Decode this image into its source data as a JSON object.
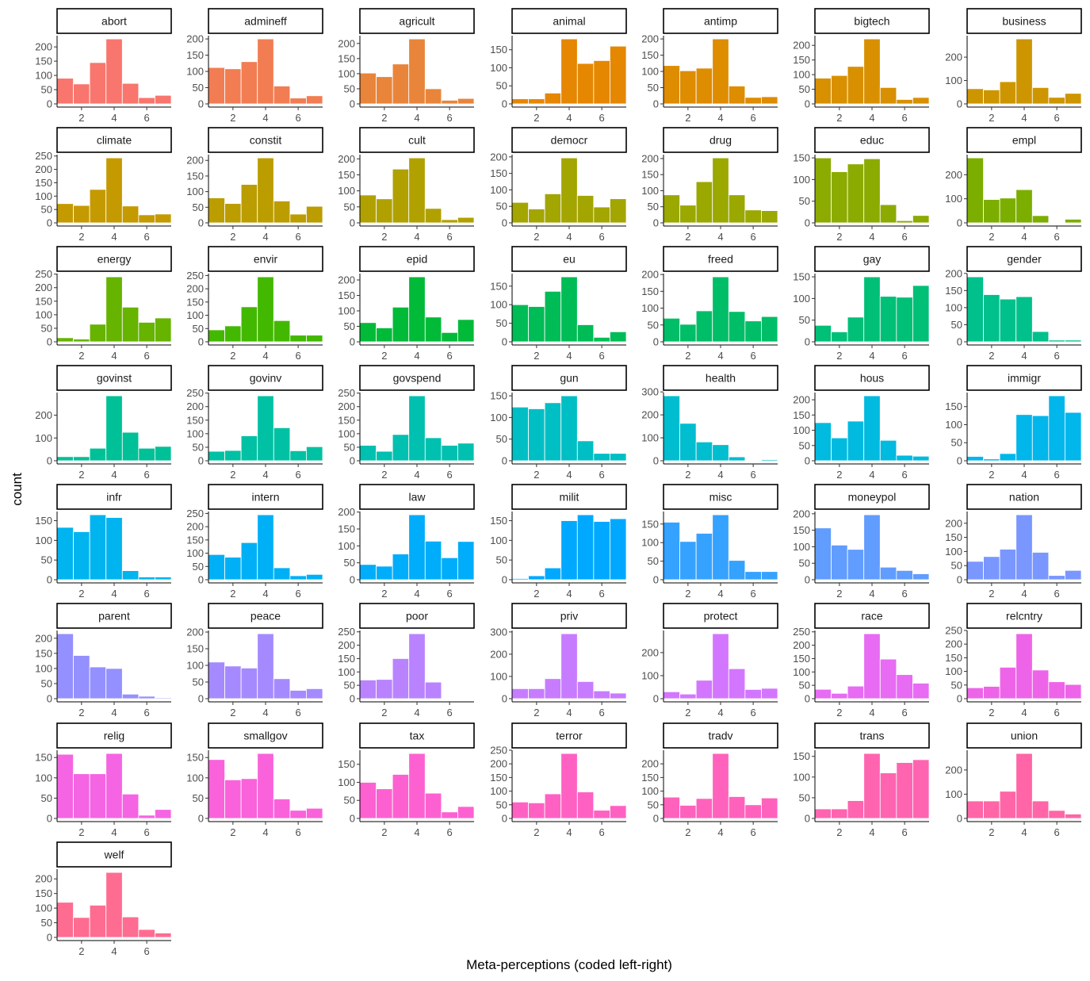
{
  "chart_data": {
    "type": "bar",
    "xlabel": "Meta-perceptions (coded left-right)",
    "ylabel": "count",
    "x_categories": [
      1,
      2,
      3,
      4,
      5,
      6,
      7
    ],
    "x_ticks": [
      2,
      4,
      6
    ],
    "legend": "none",
    "grid": false,
    "panels": [
      {
        "name": "abort",
        "color": "#F8766D",
        "yticks": [
          0,
          50,
          100,
          150,
          200
        ],
        "values": [
          90,
          70,
          145,
          228,
          72,
          22,
          30
        ]
      },
      {
        "name": "admineff",
        "color": "#F27D52",
        "yticks": [
          0,
          50,
          100,
          150,
          200
        ],
        "values": [
          112,
          108,
          130,
          200,
          55,
          18,
          25
        ]
      },
      {
        "name": "agricult",
        "color": "#E8853A",
        "yticks": [
          0,
          50,
          100,
          150,
          200
        ],
        "values": [
          102,
          90,
          132,
          215,
          50,
          12,
          18
        ]
      },
      {
        "name": "animal",
        "color": "#E58700",
        "yticks": [
          0,
          50,
          100,
          150
        ],
        "values": [
          14,
          14,
          30,
          180,
          112,
          120,
          160
        ]
      },
      {
        "name": "antimp",
        "color": "#DE8C00",
        "yticks": [
          0,
          50,
          100,
          150,
          200
        ],
        "values": [
          118,
          102,
          110,
          200,
          55,
          20,
          22
        ]
      },
      {
        "name": "bigtech",
        "color": "#D89000",
        "yticks": [
          0,
          50,
          100,
          150,
          200
        ],
        "values": [
          88,
          97,
          128,
          222,
          56,
          15,
          22
        ]
      },
      {
        "name": "business",
        "color": "#CD9600",
        "yticks": [
          0,
          100,
          200
        ],
        "values": [
          65,
          60,
          95,
          278,
          70,
          28,
          45
        ]
      },
      {
        "name": "climate",
        "color": "#C49A00",
        "yticks": [
          0,
          50,
          100,
          150,
          200,
          250
        ],
        "values": [
          72,
          65,
          125,
          243,
          63,
          30,
          33
        ]
      },
      {
        "name": "constit",
        "color": "#BB9D00",
        "yticks": [
          0,
          50,
          100,
          150,
          200
        ],
        "values": [
          80,
          62,
          123,
          208,
          70,
          28,
          53
        ]
      },
      {
        "name": "cult",
        "color": "#B0A100",
        "yticks": [
          0,
          50,
          100,
          150,
          200
        ],
        "values": [
          87,
          75,
          168,
          203,
          45,
          10,
          17
        ]
      },
      {
        "name": "democr",
        "color": "#A3A500",
        "yticks": [
          0,
          50,
          100,
          150,
          200
        ],
        "values": [
          62,
          42,
          88,
          197,
          83,
          48,
          73
        ]
      },
      {
        "name": "drug",
        "color": "#9AA800",
        "yticks": [
          0,
          50,
          100,
          150,
          200
        ],
        "values": [
          87,
          55,
          128,
          202,
          87,
          40,
          38
        ]
      },
      {
        "name": "educ",
        "color": "#8CAB00",
        "yticks": [
          0,
          50,
          100,
          150
        ],
        "values": [
          150,
          118,
          136,
          148,
          42,
          5,
          17
        ]
      },
      {
        "name": "empl",
        "color": "#7CAE00",
        "yticks": [
          0,
          100,
          200
        ],
        "values": [
          270,
          97,
          103,
          138,
          30,
          2,
          15
        ]
      },
      {
        "name": "energy",
        "color": "#66B300",
        "yticks": [
          0,
          50,
          100,
          150,
          200,
          250
        ],
        "values": [
          15,
          10,
          65,
          240,
          128,
          72,
          88
        ]
      },
      {
        "name": "envir",
        "color": "#43B800",
        "yticks": [
          0,
          50,
          100,
          150,
          200,
          250
        ],
        "values": [
          45,
          60,
          132,
          245,
          80,
          25,
          25
        ]
      },
      {
        "name": "epid",
        "color": "#00BA38",
        "yticks": [
          0,
          50,
          100,
          150,
          200
        ],
        "values": [
          62,
          45,
          112,
          210,
          80,
          30,
          72
        ]
      },
      {
        "name": "eu",
        "color": "#00BC56",
        "yticks": [
          0,
          50,
          100,
          150
        ],
        "values": [
          100,
          95,
          136,
          175,
          46,
          12,
          27
        ]
      },
      {
        "name": "freed",
        "color": "#00BE67",
        "yticks": [
          0,
          50,
          100,
          150,
          200
        ],
        "values": [
          70,
          52,
          92,
          193,
          90,
          62,
          75
        ]
      },
      {
        "name": "gay",
        "color": "#00BF77",
        "yticks": [
          0,
          50,
          100,
          150
        ],
        "values": [
          38,
          23,
          57,
          150,
          105,
          103,
          130
        ]
      },
      {
        "name": "gender",
        "color": "#00C08B",
        "yticks": [
          0,
          50,
          100,
          150,
          200
        ],
        "values": [
          190,
          138,
          125,
          132,
          30,
          5,
          5
        ]
      },
      {
        "name": "govinst",
        "color": "#00C097",
        "yticks": [
          0,
          100,
          200
        ],
        "values": [
          18,
          18,
          55,
          285,
          125,
          55,
          63
        ]
      },
      {
        "name": "govinv",
        "color": "#00C1A3",
        "yticks": [
          0,
          50,
          100,
          150,
          200,
          250
        ],
        "values": [
          35,
          38,
          92,
          240,
          122,
          37,
          52
        ]
      },
      {
        "name": "govspend",
        "color": "#00C0AF",
        "yticks": [
          0,
          50,
          100,
          150,
          200,
          250
        ],
        "values": [
          57,
          35,
          97,
          240,
          85,
          57,
          65
        ]
      },
      {
        "name": "gun",
        "color": "#00BFC4",
        "yticks": [
          0,
          50,
          100,
          150
        ],
        "values": [
          124,
          120,
          134,
          150,
          46,
          17,
          17
        ]
      },
      {
        "name": "health",
        "color": "#00BDD0",
        "yticks": [
          0,
          100,
          200,
          300
        ],
        "values": [
          283,
          163,
          82,
          70,
          17,
          0,
          5
        ]
      },
      {
        "name": "hous",
        "color": "#00BAE0",
        "yticks": [
          0,
          50,
          100,
          150,
          200
        ],
        "values": [
          125,
          75,
          130,
          213,
          67,
          18,
          15
        ]
      },
      {
        "name": "immigr",
        "color": "#00B6EB",
        "yticks": [
          0,
          50,
          100,
          150
        ],
        "values": [
          12,
          5,
          20,
          128,
          125,
          180,
          134
        ]
      },
      {
        "name": "infr",
        "color": "#00B4EF",
        "yticks": [
          0,
          50,
          100,
          150
        ],
        "values": [
          133,
          122,
          165,
          158,
          23,
          7,
          7
        ]
      },
      {
        "name": "intern",
        "color": "#00B0F6",
        "yticks": [
          0,
          50,
          100,
          150,
          200,
          250
        ],
        "values": [
          95,
          85,
          140,
          245,
          45,
          15,
          20
        ]
      },
      {
        "name": "law",
        "color": "#00ADFA",
        "yticks": [
          0,
          50,
          100,
          150,
          200
        ],
        "values": [
          45,
          40,
          76,
          192,
          114,
          65,
          113
        ]
      },
      {
        "name": "milit",
        "color": "#00A9FF",
        "yticks": [
          0,
          50,
          100,
          150
        ],
        "values": [
          3,
          10,
          30,
          150,
          165,
          148,
          155
        ]
      },
      {
        "name": "misc",
        "color": "#35A2FF",
        "yticks": [
          0,
          50,
          100,
          150
        ],
        "values": [
          155,
          103,
          125,
          175,
          52,
          22,
          22
        ]
      },
      {
        "name": "moneypol",
        "color": "#619CFF",
        "yticks": [
          0,
          50,
          100,
          150,
          200
        ],
        "values": [
          157,
          105,
          92,
          197,
          38,
          28,
          18
        ]
      },
      {
        "name": "nation",
        "color": "#7997FF",
        "yticks": [
          0,
          50,
          100,
          150,
          200
        ],
        "values": [
          65,
          82,
          108,
          230,
          97,
          15,
          33
        ]
      },
      {
        "name": "parent",
        "color": "#9590FF",
        "yticks": [
          0,
          50,
          100,
          150,
          200
        ],
        "values": [
          215,
          143,
          105,
          100,
          15,
          8,
          3
        ]
      },
      {
        "name": "peace",
        "color": "#A58AFF",
        "yticks": [
          0,
          50,
          100,
          150,
          200
        ],
        "values": [
          110,
          98,
          92,
          195,
          60,
          25,
          30
        ]
      },
      {
        "name": "poor",
        "color": "#B983FF",
        "yticks": [
          0,
          50,
          100,
          150,
          200,
          250
        ],
        "values": [
          70,
          72,
          150,
          243,
          62,
          2,
          2
        ]
      },
      {
        "name": "priv",
        "color": "#C77CFF",
        "yticks": [
          0,
          100,
          200,
          300
        ],
        "values": [
          45,
          45,
          90,
          292,
          77,
          35,
          25
        ]
      },
      {
        "name": "protect",
        "color": "#D376FF",
        "yticks": [
          0,
          100,
          200
        ],
        "values": [
          30,
          20,
          80,
          282,
          130,
          40,
          45
        ]
      },
      {
        "name": "race",
        "color": "#E76BF3",
        "yticks": [
          0,
          50,
          100,
          150,
          200,
          250
        ],
        "values": [
          35,
          20,
          47,
          243,
          148,
          90,
          58
        ]
      },
      {
        "name": "relcntry",
        "color": "#EE64E8",
        "yticks": [
          0,
          50,
          100,
          150,
          200,
          250
        ],
        "values": [
          40,
          45,
          115,
          238,
          105,
          62,
          52
        ]
      },
      {
        "name": "relig",
        "color": "#F564E3",
        "yticks": [
          0,
          50,
          100,
          150
        ],
        "values": [
          158,
          110,
          110,
          160,
          60,
          8,
          22
        ]
      },
      {
        "name": "smallgov",
        "color": "#FA62DB",
        "yticks": [
          0,
          50,
          100,
          150
        ],
        "values": [
          145,
          95,
          98,
          160,
          48,
          20,
          25
        ]
      },
      {
        "name": "tax",
        "color": "#FD61D1",
        "yticks": [
          0,
          50,
          100,
          150
        ],
        "values": [
          100,
          82,
          122,
          180,
          70,
          18,
          33
        ]
      },
      {
        "name": "terror",
        "color": "#FF61C3",
        "yticks": [
          0,
          50,
          100,
          150,
          200,
          250
        ],
        "values": [
          60,
          57,
          90,
          238,
          97,
          30,
          47
        ]
      },
      {
        "name": "tradv",
        "color": "#FF62BC",
        "yticks": [
          0,
          50,
          100,
          150,
          200
        ],
        "values": [
          78,
          48,
          73,
          238,
          80,
          50,
          75
        ]
      },
      {
        "name": "trans",
        "color": "#FF64B0",
        "yticks": [
          0,
          50,
          100,
          150
        ],
        "values": [
          23,
          23,
          43,
          157,
          110,
          135,
          142
        ]
      },
      {
        "name": "union",
        "color": "#FF65A7",
        "yticks": [
          0,
          100,
          200
        ],
        "values": [
          72,
          72,
          112,
          268,
          72,
          33,
          18
        ]
      },
      {
        "name": "welf",
        "color": "#FF6C91",
        "yticks": [
          0,
          50,
          100,
          150,
          200
        ],
        "values": [
          120,
          68,
          110,
          222,
          70,
          27,
          15
        ]
      }
    ]
  }
}
